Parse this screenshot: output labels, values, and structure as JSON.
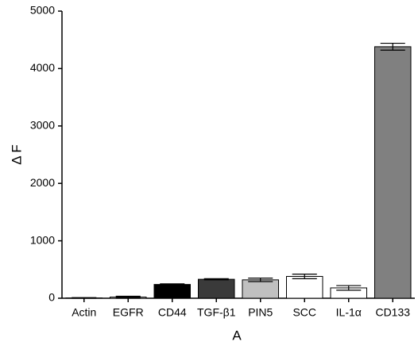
{
  "chart_data": {
    "type": "bar",
    "x_label": "A",
    "y_label": "Δ F",
    "categories": [
      "Actin",
      "EGFR",
      "CD44",
      "TGF-β1",
      "PIN5",
      "SCC",
      "IL-1α",
      "CD133"
    ],
    "values": [
      5,
      20,
      240,
      330,
      320,
      380,
      180,
      4380
    ],
    "errors": [
      5,
      15,
      10,
      10,
      30,
      40,
      40,
      60
    ],
    "colors": [
      "#ffffff",
      "#ffffff",
      "#000000",
      "#3a3a3a",
      "#c0c0c0",
      "#ffffff",
      "#ffffff",
      "#808080"
    ],
    "ylim": [
      0,
      5000
    ],
    "yticks": [
      0,
      1000,
      2000,
      3000,
      4000,
      5000
    ]
  }
}
